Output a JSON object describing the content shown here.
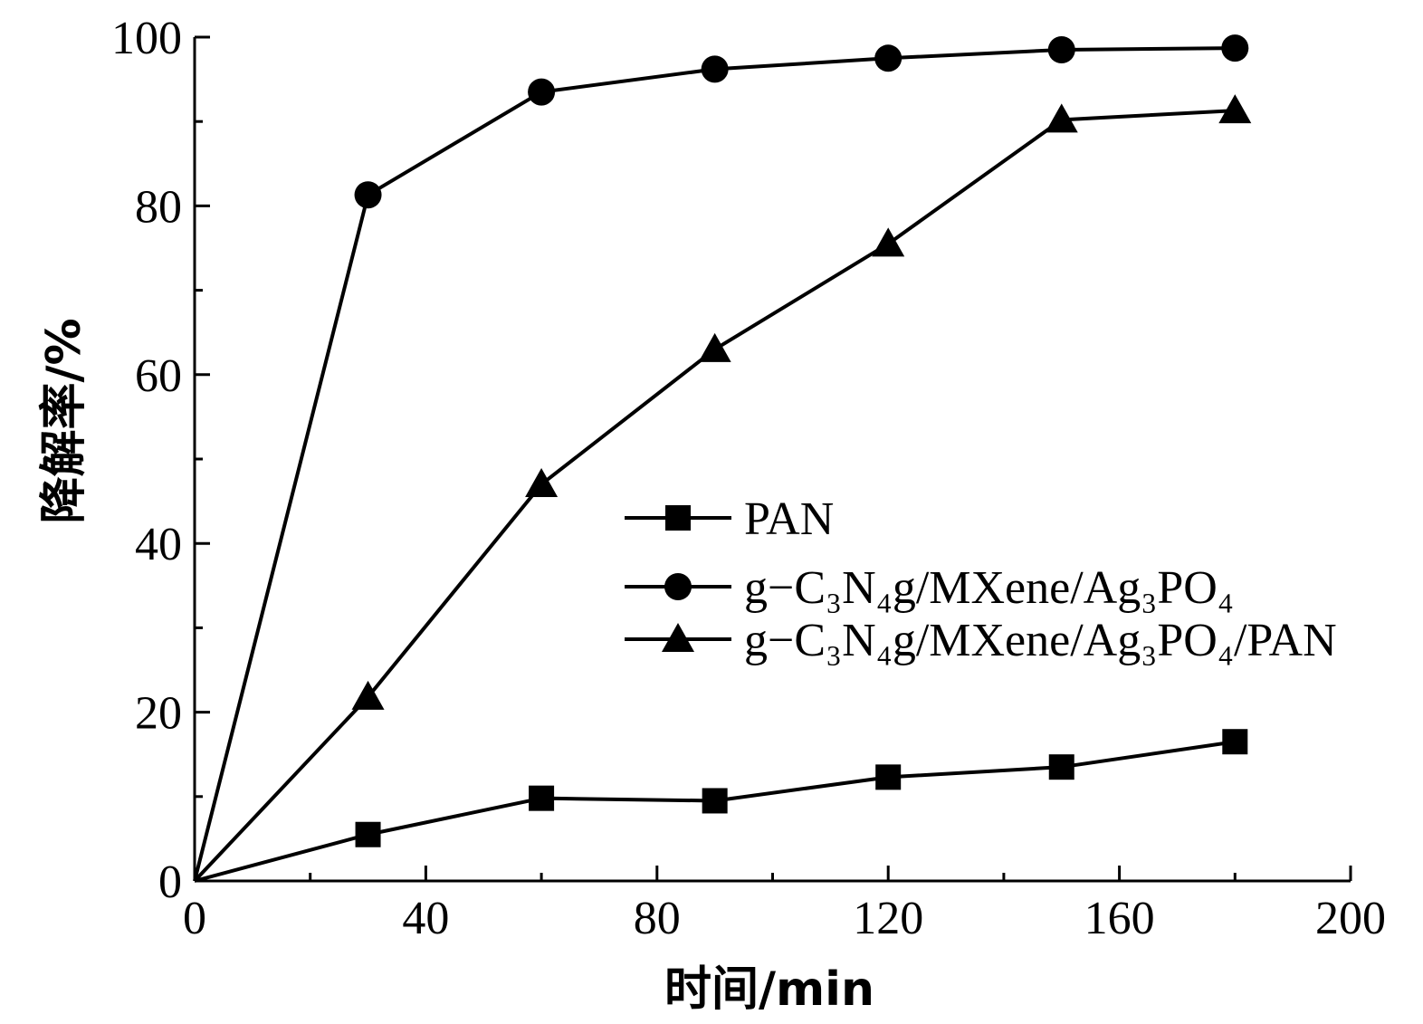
{
  "chart_data": {
    "type": "line",
    "xlabel": "时间/min",
    "ylabel": "降解率/%",
    "xlim": [
      0,
      200
    ],
    "ylim": [
      0,
      100
    ],
    "x_ticks": [
      0,
      40,
      80,
      120,
      160,
      200
    ],
    "y_ticks": [
      0,
      20,
      40,
      60,
      80,
      100
    ],
    "x_minor_step": 20,
    "y_minor_step": 10,
    "grid": false,
    "legend_position": "right-center",
    "series": [
      {
        "name": "PAN",
        "marker": "square",
        "color": "#000000",
        "x": [
          0,
          30,
          60,
          90,
          120,
          150,
          180
        ],
        "y": [
          0,
          5.5,
          9.8,
          9.5,
          12.3,
          13.5,
          16.5
        ]
      },
      {
        "name": "g−C₃N₄g/MXene/Ag₃PO₄",
        "marker": "circle",
        "color": "#000000",
        "x": [
          0,
          30,
          60,
          90,
          120,
          150,
          180
        ],
        "y": [
          0,
          81.3,
          93.5,
          96.2,
          97.5,
          98.5,
          98.7
        ]
      },
      {
        "name": "g−C₃N₄g/MXene/Ag₃PO₄/PAN",
        "marker": "triangle",
        "color": "#000000",
        "x": [
          0,
          30,
          60,
          90,
          120,
          150,
          180
        ],
        "y": [
          0,
          21.8,
          47,
          63,
          75.5,
          90.2,
          91.3
        ]
      }
    ]
  }
}
